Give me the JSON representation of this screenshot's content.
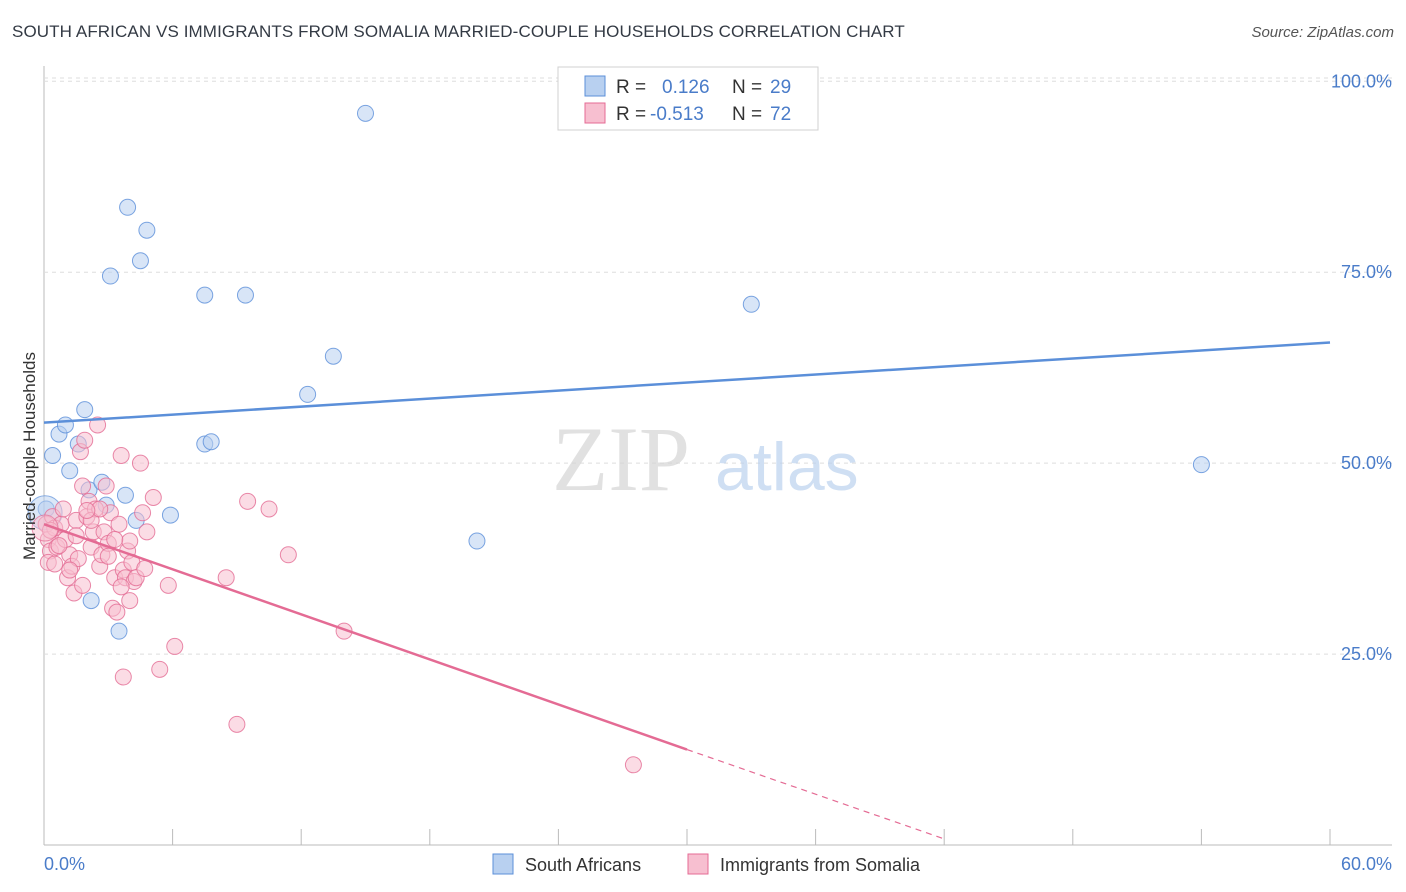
{
  "header": {
    "title": "SOUTH AFRICAN VS IMMIGRANTS FROM SOMALIA MARRIED-COUPLE HOUSEHOLDS CORRELATION CHART",
    "source": "Source: ZipAtlas.com"
  },
  "watermark": {
    "zip": "ZIP",
    "atlas": "atlas"
  },
  "legend": {
    "rows": [
      {
        "r_label": "R =",
        "r_value": "0.126",
        "n_label": "N =",
        "n_value": "29"
      },
      {
        "r_label": "R =",
        "r_value": "-0.513",
        "n_label": "N =",
        "n_value": "72"
      }
    ]
  },
  "chart_data": {
    "type": "scatter",
    "title": "SOUTH AFRICAN VS IMMIGRANTS FROM SOMALIA MARRIED-COUPLE HOUSEHOLDS CORRELATION CHART",
    "xlabel": "",
    "ylabel": "Married-couple Households",
    "xlim": [
      0,
      60
    ],
    "ylim": [
      0,
      102
    ],
    "x_tick_labels": [
      "0.0%",
      "60.0%"
    ],
    "y_ticks": [
      25,
      50,
      75,
      100
    ],
    "y_tick_labels": [
      "25.0%",
      "50.0%",
      "75.0%",
      "100.0%"
    ],
    "grid": true,
    "series": [
      {
        "name": "South Africans",
        "color": "#5b8fd9",
        "fill": "#b8d0f0",
        "r": 0.126,
        "n": 29,
        "trend": {
          "x0": 0,
          "y0": 55.3,
          "x1": 60,
          "y1": 65.8
        },
        "points": [
          [
            0.1,
            44.0
          ],
          [
            0.4,
            51.0
          ],
          [
            0.7,
            53.8
          ],
          [
            1.0,
            55.0
          ],
          [
            1.2,
            49.0
          ],
          [
            1.9,
            57.0
          ],
          [
            1.6,
            52.5
          ],
          [
            2.1,
            46.5
          ],
          [
            2.7,
            47.5
          ],
          [
            2.9,
            44.5
          ],
          [
            3.8,
            45.8
          ],
          [
            4.3,
            42.5
          ],
          [
            5.9,
            43.2
          ],
          [
            2.2,
            32.0
          ],
          [
            3.5,
            28.0
          ],
          [
            3.1,
            74.5
          ],
          [
            3.9,
            83.5
          ],
          [
            4.5,
            76.5
          ],
          [
            4.8,
            80.5
          ],
          [
            7.5,
            72.0
          ],
          [
            9.4,
            72.0
          ],
          [
            7.5,
            52.5
          ],
          [
            7.8,
            52.8
          ],
          [
            12.3,
            59.0
          ],
          [
            13.5,
            64.0
          ],
          [
            15.0,
            95.8
          ],
          [
            20.2,
            39.8
          ],
          [
            33.0,
            70.8
          ],
          [
            54.0,
            49.8
          ]
        ]
      },
      {
        "name": "Immigrants from Somalia",
        "color": "#e46b94",
        "fill": "#f7bfd0",
        "r": -0.513,
        "n": 72,
        "trend": {
          "x0": 0,
          "y0": 42.0,
          "x1": 30,
          "y1": 12.5,
          "dash_x1": 45,
          "dash_y1": -2.3
        },
        "points": [
          [
            0.1,
            42.0
          ],
          [
            0.2,
            40.0
          ],
          [
            0.3,
            38.5
          ],
          [
            0.4,
            43.0
          ],
          [
            0.5,
            41.5
          ],
          [
            0.6,
            39.0
          ],
          [
            0.8,
            42.0
          ],
          [
            0.9,
            44.0
          ],
          [
            1.0,
            40.0
          ],
          [
            1.1,
            35.0
          ],
          [
            1.2,
            38.0
          ],
          [
            1.3,
            36.5
          ],
          [
            1.4,
            33.0
          ],
          [
            1.5,
            42.5
          ],
          [
            1.6,
            37.5
          ],
          [
            1.7,
            51.5
          ],
          [
            1.8,
            34.0
          ],
          [
            1.9,
            53.0
          ],
          [
            2.0,
            43.0
          ],
          [
            2.1,
            45.0
          ],
          [
            2.2,
            39.0
          ],
          [
            2.3,
            41.0
          ],
          [
            2.4,
            44.0
          ],
          [
            2.5,
            55.0
          ],
          [
            2.6,
            36.5
          ],
          [
            2.7,
            38.0
          ],
          [
            2.8,
            41.0
          ],
          [
            2.9,
            47.0
          ],
          [
            3.0,
            39.5
          ],
          [
            3.1,
            43.5
          ],
          [
            3.2,
            31.0
          ],
          [
            3.3,
            35.0
          ],
          [
            3.4,
            30.5
          ],
          [
            3.5,
            42.0
          ],
          [
            3.6,
            51.0
          ],
          [
            3.7,
            36.0
          ],
          [
            3.8,
            35.0
          ],
          [
            3.9,
            38.5
          ],
          [
            4.0,
            32.0
          ],
          [
            4.1,
            37.0
          ],
          [
            4.2,
            34.5
          ],
          [
            4.3,
            35.0
          ],
          [
            4.5,
            50.0
          ],
          [
            4.6,
            43.5
          ],
          [
            4.8,
            41.0
          ],
          [
            5.1,
            45.5
          ],
          [
            5.8,
            34.0
          ],
          [
            6.1,
            26.0
          ],
          [
            5.4,
            23.0
          ],
          [
            3.7,
            22.0
          ],
          [
            8.5,
            35.0
          ],
          [
            9.5,
            45.0
          ],
          [
            10.5,
            44.0
          ],
          [
            11.4,
            38.0
          ],
          [
            14.0,
            28.0
          ],
          [
            9.0,
            15.8
          ],
          [
            27.5,
            10.5
          ],
          [
            0.2,
            37.0
          ],
          [
            0.7,
            39.2
          ],
          [
            1.5,
            40.5
          ],
          [
            2.2,
            42.5
          ],
          [
            3.0,
            37.8
          ],
          [
            3.6,
            33.8
          ],
          [
            4.0,
            39.8
          ],
          [
            0.3,
            41.2
          ],
          [
            1.2,
            36.0
          ],
          [
            2.6,
            44.0
          ],
          [
            3.3,
            40.0
          ],
          [
            1.8,
            47.0
          ],
          [
            0.5,
            36.8
          ],
          [
            4.7,
            36.2
          ],
          [
            2.0,
            43.8
          ]
        ]
      }
    ]
  }
}
